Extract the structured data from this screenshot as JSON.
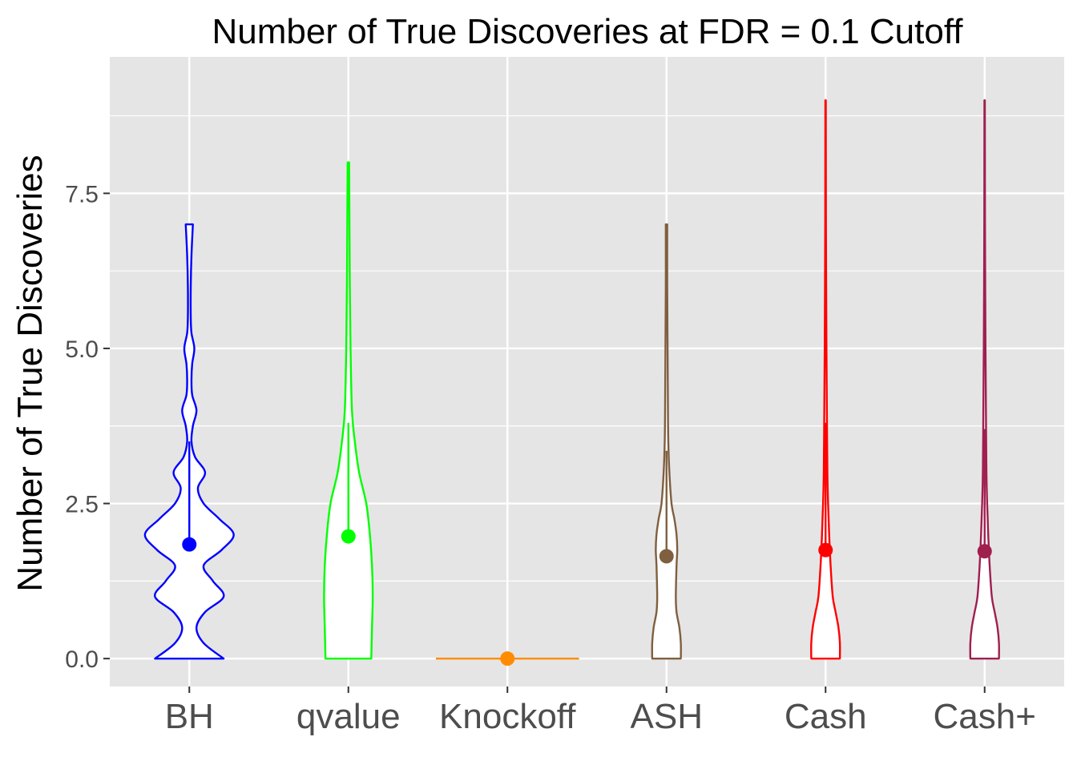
{
  "chart_data": {
    "type": "violin",
    "title": "Number of True Discoveries at FDR = 0.1 Cutoff",
    "xlabel": "",
    "ylabel": "Number of True Discoveries",
    "categories": [
      "BH",
      "qvalue",
      "Knockoff",
      "ASH",
      "Cash",
      "Cash+"
    ],
    "y_ticks": [
      0.0,
      2.5,
      5.0,
      7.5
    ],
    "y_tick_labels": [
      "0.0",
      "2.5",
      "5.0",
      "7.5"
    ],
    "ylim": [
      -0.45,
      9.7
    ],
    "grid": true,
    "legend": "none",
    "series": [
      {
        "category": "BH",
        "color": "#0000ff",
        "mean": 1.84,
        "sd_upper": 3.5,
        "min": 0,
        "max": 7,
        "density": [
          [
            0,
            0.48
          ],
          [
            0.25,
            0.2
          ],
          [
            0.5,
            0.1
          ],
          [
            0.75,
            0.22
          ],
          [
            1.0,
            0.48
          ],
          [
            1.25,
            0.33
          ],
          [
            1.5,
            0.2
          ],
          [
            1.75,
            0.45
          ],
          [
            2.0,
            0.62
          ],
          [
            2.25,
            0.42
          ],
          [
            2.5,
            0.2
          ],
          [
            2.75,
            0.12
          ],
          [
            3.0,
            0.22
          ],
          [
            3.25,
            0.08
          ],
          [
            3.5,
            0.03
          ],
          [
            3.75,
            0.05
          ],
          [
            4.0,
            0.1
          ],
          [
            4.25,
            0.04
          ],
          [
            4.5,
            0.03
          ],
          [
            4.75,
            0.04
          ],
          [
            5.0,
            0.07
          ],
          [
            5.25,
            0.03
          ],
          [
            5.5,
            0.02
          ],
          [
            6.0,
            0.02
          ],
          [
            6.5,
            0.03
          ],
          [
            7.0,
            0.05
          ]
        ]
      },
      {
        "category": "qvalue",
        "color": "#00ff00",
        "mean": 1.97,
        "sd_upper": 3.8,
        "min": 0,
        "max": 8,
        "density": [
          [
            0,
            0.32
          ],
          [
            0.5,
            0.33
          ],
          [
            1.0,
            0.34
          ],
          [
            1.5,
            0.33
          ],
          [
            2.0,
            0.3
          ],
          [
            2.5,
            0.25
          ],
          [
            3.0,
            0.15
          ],
          [
            3.5,
            0.09
          ],
          [
            4.0,
            0.05
          ],
          [
            5.0,
            0.03
          ],
          [
            6.0,
            0.02
          ],
          [
            7.0,
            0.015
          ],
          [
            8.0,
            0.01
          ]
        ]
      },
      {
        "category": "Knockoff",
        "color": "#ff8c00",
        "mean": 0.0,
        "sd_upper": 0.0,
        "min": 0,
        "max": 0,
        "density": [
          [
            0,
            1.0
          ]
        ]
      },
      {
        "category": "ASH",
        "color": "#7f5f3f",
        "mean": 1.65,
        "sd_upper": 3.35,
        "min": 0,
        "max": 7,
        "density": [
          [
            0,
            0.2
          ],
          [
            0.25,
            0.2
          ],
          [
            0.5,
            0.18
          ],
          [
            0.75,
            0.14
          ],
          [
            1.0,
            0.13
          ],
          [
            1.5,
            0.14
          ],
          [
            1.75,
            0.15
          ],
          [
            2.0,
            0.14
          ],
          [
            2.25,
            0.11
          ],
          [
            2.5,
            0.07
          ],
          [
            3.0,
            0.04
          ],
          [
            3.5,
            0.025
          ],
          [
            4.0,
            0.02
          ],
          [
            5.0,
            0.015
          ],
          [
            6.0,
            0.01
          ],
          [
            7.0,
            0.01
          ]
        ]
      },
      {
        "category": "Cash",
        "color": "#ff0000",
        "mean": 1.75,
        "sd_upper": 3.8,
        "min": 0,
        "max": 9,
        "density": [
          [
            0,
            0.2
          ],
          [
            0.25,
            0.2
          ],
          [
            0.5,
            0.18
          ],
          [
            0.75,
            0.14
          ],
          [
            1.0,
            0.1
          ],
          [
            1.5,
            0.07
          ],
          [
            2.0,
            0.05
          ],
          [
            2.5,
            0.035
          ],
          [
            3.0,
            0.025
          ],
          [
            4.0,
            0.018
          ],
          [
            5.0,
            0.012
          ],
          [
            6.0,
            0.008
          ],
          [
            7.0,
            0.005
          ],
          [
            8.0,
            0.004
          ],
          [
            9.0,
            0.003
          ]
        ]
      },
      {
        "category": "Cash+",
        "color": "#9f1f4f",
        "mean": 1.73,
        "sd_upper": 3.7,
        "min": 0,
        "max": 9,
        "density": [
          [
            0,
            0.2
          ],
          [
            0.25,
            0.2
          ],
          [
            0.5,
            0.18
          ],
          [
            0.75,
            0.14
          ],
          [
            1.0,
            0.1
          ],
          [
            1.5,
            0.07
          ],
          [
            2.0,
            0.05
          ],
          [
            2.5,
            0.035
          ],
          [
            3.0,
            0.025
          ],
          [
            4.0,
            0.018
          ],
          [
            5.0,
            0.012
          ],
          [
            6.0,
            0.008
          ],
          [
            7.0,
            0.005
          ],
          [
            8.0,
            0.004
          ],
          [
            9.0,
            0.003
          ]
        ]
      }
    ]
  }
}
